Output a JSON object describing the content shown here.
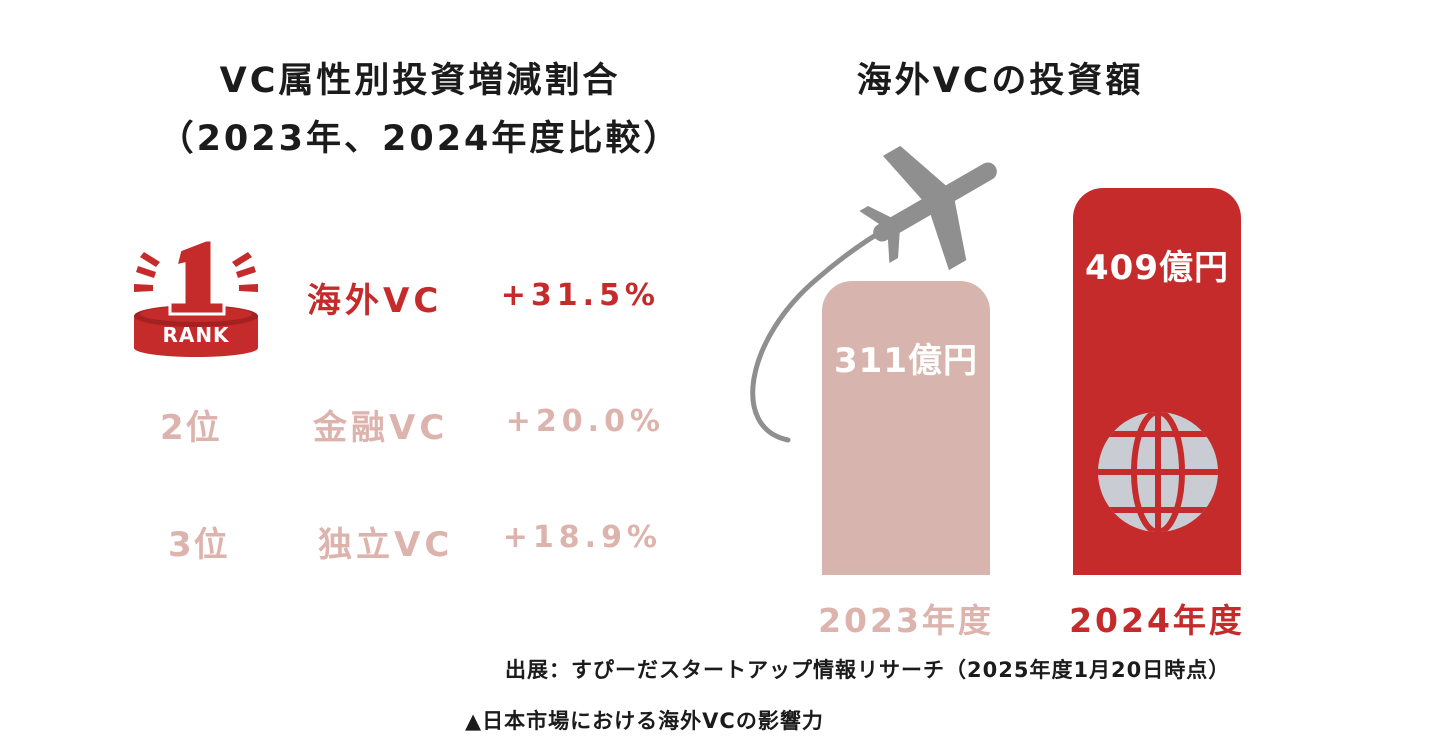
{
  "left": {
    "title_line1": "VC属性別投資増減割合",
    "title_line2": "（2023年、2024年度比較）",
    "badge_text": "RANK",
    "rows": [
      {
        "rank": "1",
        "name": "海外VC",
        "change": "+31.5%"
      },
      {
        "rank": "2位",
        "name": "金融VC",
        "change": "+20.0%"
      },
      {
        "rank": "3位",
        "name": "独立VC",
        "change": "+18.9%"
      }
    ]
  },
  "right": {
    "title": "海外VCの投資額"
  },
  "colors": {
    "accent": "#c52b2b",
    "muted": "#ddb3ad",
    "bar_2023": "#d7b5ae",
    "bar_2024": "#c52b2b",
    "plane": "#8f8f8f",
    "globe": "#c9ccd2"
  },
  "icons": [
    "rank-1-badge-icon",
    "airplane-icon",
    "globe-icon"
  ],
  "chart_data": [
    {
      "type": "table",
      "title": "VC属性別投資増減割合（2023年、2024年度比較）",
      "columns": [
        "rank",
        "name",
        "change"
      ],
      "rows": [
        [
          "1",
          "海外VC",
          "+31.5%"
        ],
        [
          "2位",
          "金融VC",
          "+20.0%"
        ],
        [
          "3位",
          "独立VC",
          "+18.9%"
        ]
      ]
    },
    {
      "type": "bar",
      "title": "海外VCの投資額",
      "categories": [
        "2023年度",
        "2024年度"
      ],
      "values": [
        311,
        409
      ],
      "value_labels": [
        "311億円",
        "409億円"
      ],
      "ylim": [
        0,
        409
      ],
      "grid": false
    }
  ],
  "footer": {
    "source": "出展：すぴーだスタートアップ情報リサーチ（2025年度1月20日時点）",
    "caption": "▲日本市場における海外VCの影響力"
  }
}
